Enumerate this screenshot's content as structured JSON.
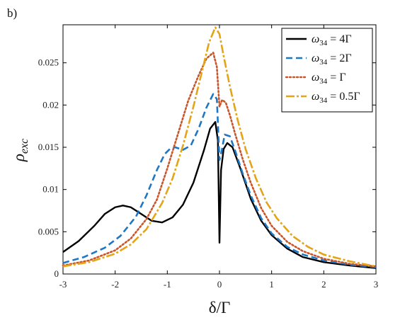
{
  "panel_label": "b)",
  "chart_data": {
    "type": "line",
    "xlabel": "δ/Γ",
    "ylabel": "ρexc",
    "xlim": [
      -3,
      3
    ],
    "ylim": [
      0,
      0.0295
    ],
    "xticks": [
      -3,
      -2,
      -1,
      0,
      1,
      2,
      3
    ],
    "xtick_labels": [
      "-3",
      "-2",
      "-1",
      "0",
      "1",
      "2",
      "3"
    ],
    "yticks": [
      0,
      0.005,
      0.01,
      0.015,
      0.02,
      0.025
    ],
    "ytick_labels": [
      "0",
      "0.005",
      "0.01",
      "0.015",
      "0.02",
      "0.025"
    ],
    "grid": false,
    "legend_position": "top-right",
    "series": [
      {
        "name": "ω34 = 4Γ",
        "legend_main": "ω",
        "legend_sub": "34",
        "legend_value": " = 4Γ",
        "color": "#000000",
        "style": "solid",
        "x": [
          -3,
          -2.7,
          -2.4,
          -2.2,
          -2.0,
          -1.85,
          -1.7,
          -1.5,
          -1.3,
          -1.1,
          -0.9,
          -0.7,
          -0.5,
          -0.3,
          -0.18,
          -0.08,
          -0.03,
          0.0,
          0.03,
          0.08,
          0.15,
          0.25,
          0.4,
          0.6,
          0.8,
          1.0,
          1.3,
          1.6,
          2.0,
          2.5,
          3.0
        ],
        "y": [
          0.0026,
          0.0039,
          0.0057,
          0.0071,
          0.0079,
          0.0081,
          0.0079,
          0.0071,
          0.0063,
          0.0061,
          0.0067,
          0.0082,
          0.0108,
          0.0146,
          0.0172,
          0.018,
          0.0158,
          0.0037,
          0.0123,
          0.0148,
          0.0155,
          0.015,
          0.0125,
          0.0089,
          0.0063,
          0.0046,
          0.003,
          0.002,
          0.0014,
          0.001,
          0.0007
        ]
      },
      {
        "name": "ω34 = 2Γ",
        "legend_main": "ω",
        "legend_sub": "34",
        "legend_value": " = 2Γ",
        "color": "#1f77c4",
        "style": "dashed",
        "x": [
          -3,
          -2.6,
          -2.2,
          -1.9,
          -1.6,
          -1.4,
          -1.2,
          -1.05,
          -0.95,
          -0.85,
          -0.7,
          -0.55,
          -0.4,
          -0.25,
          -0.12,
          -0.05,
          0.0,
          0.04,
          0.1,
          0.2,
          0.3,
          0.45,
          0.6,
          0.8,
          1.0,
          1.3,
          1.6,
          2.0,
          2.5,
          3.0
        ],
        "y": [
          0.0013,
          0.002,
          0.0031,
          0.0045,
          0.0068,
          0.0093,
          0.0123,
          0.0142,
          0.0148,
          0.015,
          0.0147,
          0.0152,
          0.0172,
          0.0197,
          0.0213,
          0.0207,
          0.0135,
          0.0145,
          0.0165,
          0.0163,
          0.0146,
          0.0118,
          0.0093,
          0.0066,
          0.0048,
          0.0032,
          0.0023,
          0.0016,
          0.0011,
          0.0008
        ]
      },
      {
        "name": "ω34 = Γ",
        "legend_main": "ω",
        "legend_sub": "34",
        "legend_value": " = Γ",
        "color": "#c8562a",
        "style": "dotted",
        "x": [
          -3,
          -2.5,
          -2.0,
          -1.7,
          -1.4,
          -1.2,
          -1.0,
          -0.8,
          -0.6,
          -0.4,
          -0.25,
          -0.12,
          -0.05,
          0.0,
          0.05,
          0.12,
          0.2,
          0.3,
          0.45,
          0.6,
          0.8,
          1.0,
          1.3,
          1.6,
          2.0,
          2.5,
          3.0
        ],
        "y": [
          0.001,
          0.0016,
          0.0028,
          0.0042,
          0.0065,
          0.0088,
          0.0125,
          0.0165,
          0.0205,
          0.0235,
          0.0255,
          0.0262,
          0.0245,
          0.0198,
          0.0206,
          0.0203,
          0.0188,
          0.0166,
          0.0135,
          0.0108,
          0.0078,
          0.0057,
          0.0038,
          0.0027,
          0.0018,
          0.0012,
          0.0009
        ]
      },
      {
        "name": "ω34 = 0.5Γ",
        "legend_main": "ω",
        "legend_sub": "34",
        "legend_value": " = 0.5Γ",
        "color": "#e3a418",
        "style": "dashdot",
        "x": [
          -3,
          -2.5,
          -2.0,
          -1.7,
          -1.4,
          -1.1,
          -0.9,
          -0.7,
          -0.5,
          -0.35,
          -0.2,
          -0.08,
          0.0,
          0.08,
          0.2,
          0.35,
          0.5,
          0.7,
          0.9,
          1.1,
          1.4,
          1.7,
          2.0,
          2.5,
          3.0
        ],
        "y": [
          0.0009,
          0.0014,
          0.0024,
          0.0035,
          0.0053,
          0.0084,
          0.0113,
          0.0152,
          0.0198,
          0.0236,
          0.0274,
          0.0292,
          0.0284,
          0.0258,
          0.0222,
          0.0182,
          0.0148,
          0.0113,
          0.0085,
          0.0066,
          0.0045,
          0.0032,
          0.0023,
          0.0015,
          0.0009
        ]
      }
    ]
  }
}
